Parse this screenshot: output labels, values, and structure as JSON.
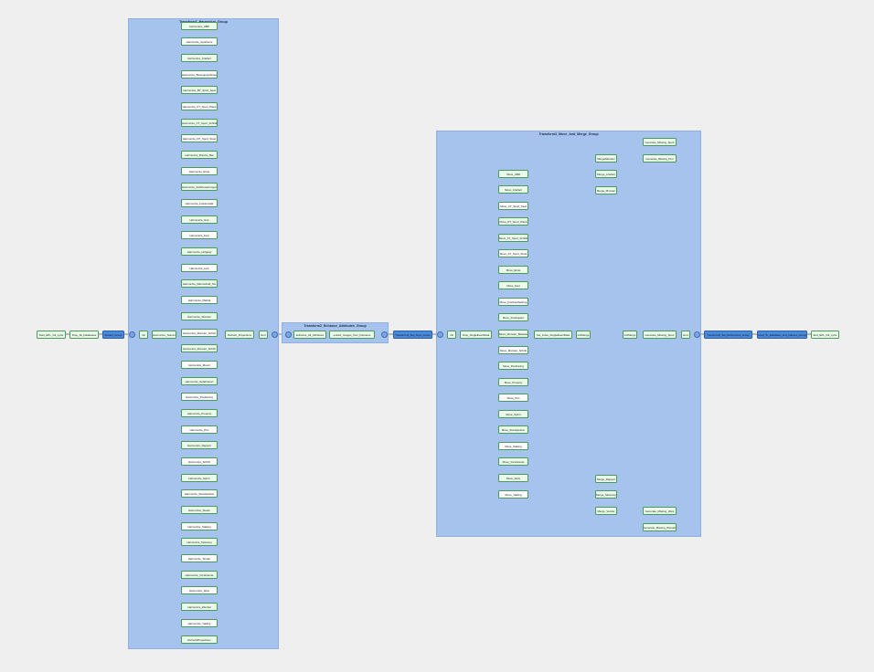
{
  "groups": {
    "transform1": "Transform1_Harmonize_Group",
    "transform2": "Transform2_Enhance_Attributes_Group",
    "transform3": "Transform3_Move_And_Merge_Group"
  },
  "main_nodes": [
    {
      "id": "start",
      "label": "Start_EPL_full_cycle"
    },
    {
      "id": "drop_all",
      "label": "Drop_All_Databases"
    },
    {
      "id": "extract_group",
      "label": "Extract_Group"
    },
    {
      "id": "init1",
      "label": "Init"
    },
    {
      "id": "harmonize_teamnames",
      "label": "Harmonize_Teamnames"
    },
    {
      "id": "refresh_projections",
      "label": "Refresh_Projections"
    },
    {
      "id": "end1",
      "label": "End"
    },
    {
      "id": "enhance_all",
      "label": "Enhance_All_Attributes"
    },
    {
      "id": "extract_images",
      "label": "extract_Images_from_Filename"
    },
    {
      "id": "transform4",
      "label": "Transform4_Set_Keys_Group"
    },
    {
      "id": "init3",
      "label": "Init"
    },
    {
      "id": "drop_single_event",
      "label": "Drop_SingleEventData"
    },
    {
      "id": "set_index",
      "label": "Set_Index_SingleEventData"
    },
    {
      "id": "init_merge",
      "label": "Init/Merge"
    },
    {
      "id": "init_merge2",
      "label": "Init/Merge"
    },
    {
      "id": "generate_missing_sport",
      "label": "Generate_Missing_Sport"
    },
    {
      "id": "end3",
      "label": "End"
    },
    {
      "id": "transform5",
      "label": "Transform5_Set_References_Group"
    },
    {
      "id": "load_group",
      "label": "Load_To_Database_and_Indexes_Group"
    },
    {
      "id": "end_epl",
      "label": "End_EPL_full_cycle"
    }
  ],
  "harmonize_nodes": [
    "Harmonize_ABR",
    "Harmonize_Apotheme",
    "Harmonize_Artefact",
    "Harmonize_Bewegungsbewertung",
    "Harmonize_BT_Sport_Seat",
    "Harmonize_CT_Sport_Plank",
    "Harmonize_CT_Sport_Schildt",
    "Harmonize_DT_Sport_Stuet",
    "Harmonize_DiscGo_Bar",
    "Harmonize_Erste",
    "Harmonize_Fahrbewertungen",
    "Harmonize_Fotokontakt",
    "Harmonize_Grip",
    "Harmonize_Fest",
    "Harmonize_Hofgang",
    "Harmonize_Lieb",
    "Harmonize_Mannschaft_Stu",
    "Harmonize_Martial",
    "Harmonize_Monster",
    "Harmonize_Monster_Schritt",
    "Harmonize_Monster_Schritt",
    "Harmonize_Mount",
    "Harmonize_Gefahrsport",
    "Harmonize_Positioning",
    "Harmonize_Property",
    "Harmonize_Pun",
    "Harmonize_Rapport",
    "Harmonize_Schrift",
    "Harmonize_Sprint",
    "Harmonize_Standpositon",
    "Harmonize_Steam",
    "Harmonize_Staking",
    "Harmonize_Tattooing",
    "Harmonize_Tender",
    "Harmonize_Vorsitzende",
    "Harmonize_Weis",
    "Harmonize_Wendel",
    "Harmonize_Yakling",
    "Refresh/Projections"
  ],
  "move_nodes": [
    "Move_ABR",
    "Move_Artefact",
    "Move_CT_Sport_Seat",
    "Move_DT_Sport_Plank",
    "Move_ST_Sport_Schildt",
    "Move_ST_Sport_Stuet",
    "Move_Erste",
    "Move_Fest",
    "Move_Fotobearbeitung",
    "Move_Fotokopiert",
    "Move_Monster_Belastet",
    "Move_Monster_Schritt",
    "Move_Positioning",
    "Move_Property",
    "Move_Pun",
    "Move_Sprint",
    "Move_Standpositon",
    "Move_Staking",
    "Move_Vorsitzende",
    "Move_Weis",
    "Move_Yakling"
  ],
  "merge_top": [
    "Merge/Monster",
    "Merge_Artefact",
    "Merge_Monster"
  ],
  "merge_bottom": [
    "Merge_Rapport",
    "Merge_Sitzening",
    "Merge_Vendor"
  ],
  "gen_top": [
    "Generate_Missing_Sport",
    "Generate_Missing_Pun"
  ],
  "gen_bottom": [
    "Generate_Missing_Weis",
    "Generate_Missing_Wendel"
  ]
}
